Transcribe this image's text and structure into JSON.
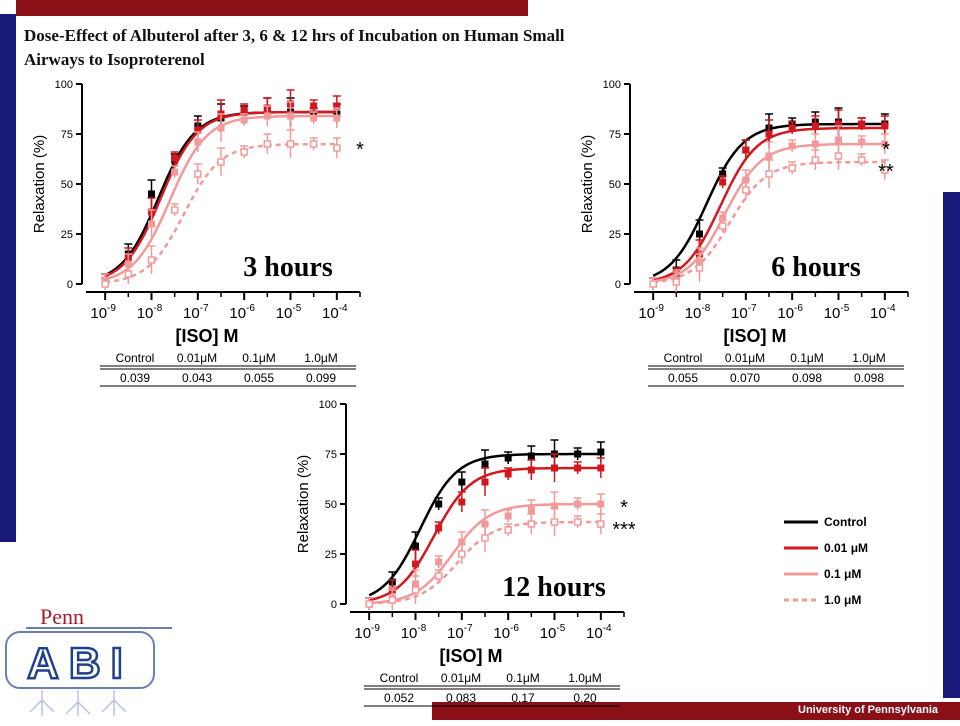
{
  "page": {
    "title": "Dose-Effect of Albuterol after 3, 6 & 12 hrs of Incubation on Human Small Airways to Isoproterenol",
    "footer": "University of Pennsylvania",
    "logo_top": "Penn",
    "logo_main": "ABI",
    "colors": {
      "navy": "#1a1a7a",
      "maroon": "#8b0f17"
    }
  },
  "legend": {
    "entries": [
      {
        "label": "Control",
        "color": "#000000",
        "dash": false
      },
      {
        "label": "0.01  μM",
        "color": "#d2181e",
        "dash": false
      },
      {
        "label": "0.1  μM",
        "color": "#f29a9a",
        "dash": false
      },
      {
        "label": "1.0  μM",
        "color": "#f29a9a",
        "dash": true
      }
    ]
  },
  "chart_data": [
    {
      "type": "line",
      "title": "3 hours",
      "xlabel": "[ISO] M",
      "ylabel": "Relaxation (%)",
      "x_scale": "log",
      "x_ticks": [
        "10-9",
        "10-8",
        "10-7",
        "10-6",
        "10-5",
        "10-4"
      ],
      "y_ticks": [
        0,
        25,
        50,
        75,
        100
      ],
      "ylim": [
        0,
        100
      ],
      "x_log_range": [
        -9.5,
        -3.5
      ],
      "x_log": [
        -9,
        -8.5,
        -8,
        -7.5,
        -7,
        -6.5,
        -6,
        -5.5,
        -5,
        -4.5,
        -4
      ],
      "annotation": "*",
      "series": [
        {
          "name": "Control",
          "color": "#000000",
          "dash": false,
          "marker": "square",
          "values": [
            2,
            15,
            45,
            62,
            79,
            83,
            86,
            88,
            86,
            85,
            85
          ],
          "ec50_log": -7.85,
          "top": 86,
          "bottom": 0
        },
        {
          "name": "0.01 μM",
          "color": "#d2181e",
          "dash": false,
          "marker": "square",
          "values": [
            2,
            13,
            36,
            63,
            77,
            85,
            87,
            88,
            90,
            89,
            89
          ],
          "ec50_log": -7.8,
          "top": 86,
          "bottom": 0
        },
        {
          "name": "0.1 μM",
          "color": "#f29a9a",
          "dash": false,
          "marker": "square",
          "values": [
            2,
            10,
            30,
            56,
            71,
            78,
            82,
            84,
            84,
            83,
            83
          ],
          "ec50_log": -7.6,
          "top": 84,
          "bottom": 0
        },
        {
          "name": "1.0 μM",
          "color": "#f29a9a",
          "dash": true,
          "marker": "open-square",
          "values": [
            0,
            5,
            12,
            37,
            55,
            61,
            66,
            70,
            70,
            70,
            68
          ],
          "ec50_log": -7.3,
          "top": 70,
          "bottom": 0
        }
      ],
      "table": {
        "headers": [
          "Control",
          "0.01μM",
          "0.1μM",
          "1.0μM"
        ],
        "values": [
          "0.039",
          "0.043",
          "0.055",
          "0.099"
        ]
      }
    },
    {
      "type": "line",
      "title": "6 hours",
      "xlabel": "[ISO] M",
      "ylabel": "Relaxation (%)",
      "x_scale": "log",
      "x_ticks": [
        "10-9",
        "10-8",
        "10-7",
        "10-6",
        "10-5",
        "10-4"
      ],
      "y_ticks": [
        0,
        25,
        50,
        75,
        100
      ],
      "ylim": [
        0,
        100
      ],
      "x_log_range": [
        -9.5,
        -3.5
      ],
      "x_log": [
        -9,
        -8.5,
        -8,
        -7.5,
        -7,
        -6.5,
        -6,
        -5.5,
        -5,
        -4.5,
        -4
      ],
      "annotation": "*\n**",
      "series": [
        {
          "name": "Control",
          "color": "#000000",
          "dash": false,
          "marker": "square",
          "values": [
            0,
            7,
            25,
            55,
            67,
            78,
            80,
            81,
            81,
            80,
            80
          ],
          "ec50_log": -7.85,
          "top": 80,
          "bottom": 0
        },
        {
          "name": "0.01 μM",
          "color": "#d2181e",
          "dash": false,
          "marker": "square",
          "values": [
            0,
            3,
            15,
            51,
            67,
            75,
            78,
            79,
            80,
            80,
            79
          ],
          "ec50_log": -7.55,
          "top": 78,
          "bottom": 0
        },
        {
          "name": "0.1 μM",
          "color": "#f29a9a",
          "dash": false,
          "marker": "square",
          "values": [
            0,
            2,
            11,
            33,
            52,
            64,
            69,
            70,
            72,
            71,
            70
          ],
          "ec50_log": -7.45,
          "top": 70,
          "bottom": 0
        },
        {
          "name": "1.0 μM",
          "color": "#f29a9a",
          "dash": true,
          "marker": "open-square",
          "values": [
            0,
            1,
            8,
            29,
            47,
            55,
            58,
            62,
            64,
            62,
            57
          ],
          "ec50_log": -7.35,
          "top": 61,
          "bottom": 0
        }
      ],
      "table": {
        "headers": [
          "Control",
          "0.01μM",
          "0.1μM",
          "1.0μM"
        ],
        "values": [
          "0.055",
          "0.070",
          "0.098",
          "0.098"
        ]
      }
    },
    {
      "type": "line",
      "title": "12 hours",
      "xlabel": "[ISO] M",
      "ylabel": "Relaxation (%)",
      "x_scale": "log",
      "x_ticks": [
        "10-9",
        "10-8",
        "10-7",
        "10-6",
        "10-5",
        "10-4"
      ],
      "y_ticks": [
        0,
        25,
        50,
        75,
        100
      ],
      "ylim": [
        0,
        100
      ],
      "x_log_range": [
        -9.5,
        -3.5
      ],
      "x_log": [
        -9,
        -8.5,
        -8,
        -7.5,
        -7,
        -6.5,
        -6,
        -5.5,
        -5,
        -4.5,
        -4
      ],
      "annotation": "*\n***",
      "series": [
        {
          "name": "Control",
          "color": "#000000",
          "dash": false,
          "marker": "square",
          "values": [
            0,
            11,
            29,
            50,
            61,
            70,
            73,
            74,
            75,
            75,
            76
          ],
          "ec50_log": -7.9,
          "top": 75,
          "bottom": 0
        },
        {
          "name": "0.01 μM",
          "color": "#d2181e",
          "dash": false,
          "marker": "square",
          "values": [
            0,
            7,
            20,
            38,
            51,
            61,
            65,
            67,
            68,
            68,
            68
          ],
          "ec50_log": -7.6,
          "top": 68,
          "bottom": 0
        },
        {
          "name": "0.1 μM",
          "color": "#f29a9a",
          "dash": false,
          "marker": "square",
          "values": [
            0,
            3,
            10,
            21,
            31,
            40,
            44,
            47,
            49,
            50,
            50
          ],
          "ec50_log": -7.2,
          "top": 50,
          "bottom": 0
        },
        {
          "name": "1.0 μM",
          "color": "#f29a9a",
          "dash": true,
          "marker": "open-square",
          "values": [
            0,
            2,
            7,
            14,
            25,
            33,
            37,
            40,
            41,
            41,
            40
          ],
          "ec50_log": -7.1,
          "top": 41,
          "bottom": 0
        }
      ],
      "table": {
        "headers": [
          "Control",
          "0.01μM",
          "0.1μM",
          "1.0μM"
        ],
        "values": [
          "0.052",
          "0.083",
          "0.17",
          "0.20"
        ]
      }
    }
  ]
}
